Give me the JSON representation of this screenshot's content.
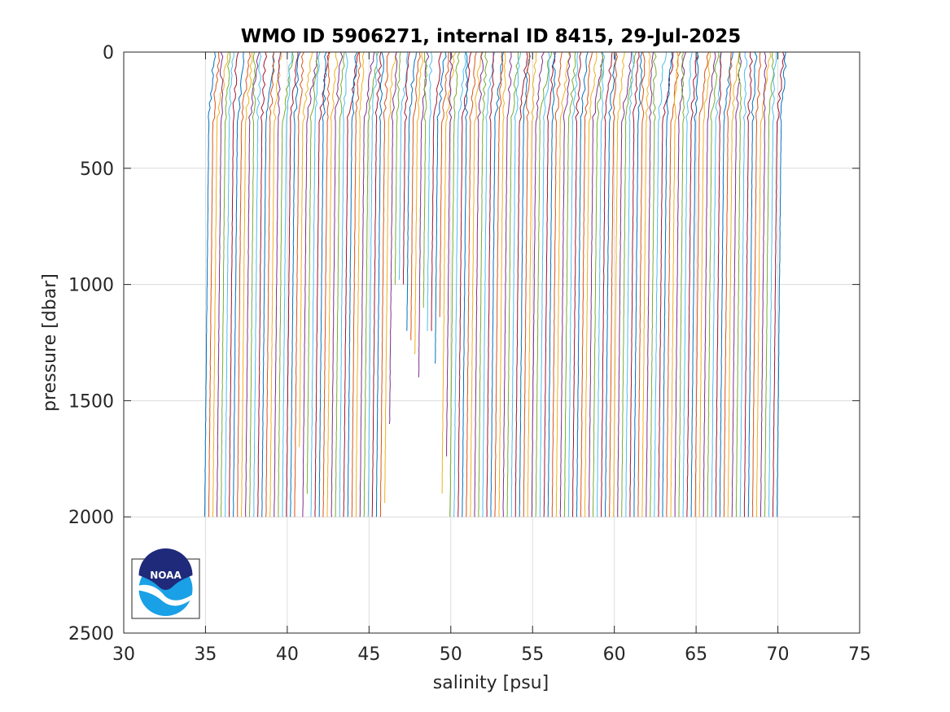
{
  "chart_data": {
    "type": "line",
    "title": "WMO ID 5906271, internal ID 8415, 29-Jul-2025",
    "xlabel": "salinity [psu]",
    "ylabel": "pressure [dbar]",
    "xlim": [
      30,
      75
    ],
    "ylim": [
      0,
      2500
    ],
    "y_reversed": true,
    "grid": true,
    "x_ticks": [
      "30",
      "35",
      "40",
      "45",
      "50",
      "55",
      "60",
      "65",
      "70",
      "75"
    ],
    "y_ticks": [
      "0",
      "500",
      "1000",
      "1500",
      "2000",
      "2500"
    ],
    "series_description": "waterfall of per-cycle salinity profiles, each profile offset by ~0.25 psu from the previous one",
    "colors": [
      "#0072bd",
      "#d95319",
      "#edb120",
      "#7e2f8e",
      "#77ac30",
      "#4dbeee",
      "#a2142f"
    ],
    "profiles": {
      "count": 141,
      "first_offset_psu": 35.0,
      "offset_step_psu": 0.25,
      "max_pressure_dbar": 2000,
      "short_profiles": [
        {
          "index": 23,
          "max_pressure_dbar": 1700
        },
        {
          "index": 25,
          "max_pressure_dbar": 1900
        },
        {
          "index": 44,
          "max_pressure_dbar": 1950
        },
        {
          "index": 45,
          "max_pressure_dbar": 1600
        },
        {
          "index": 46,
          "max_pressure_dbar": 1000
        },
        {
          "index": 47,
          "max_pressure_dbar": 980
        },
        {
          "index": 48,
          "max_pressure_dbar": 1000
        },
        {
          "index": 49,
          "max_pressure_dbar": 1200
        },
        {
          "index": 50,
          "max_pressure_dbar": 1250
        },
        {
          "index": 51,
          "max_pressure_dbar": 1300
        },
        {
          "index": 52,
          "max_pressure_dbar": 1400
        },
        {
          "index": 53,
          "max_pressure_dbar": 1100
        },
        {
          "index": 54,
          "max_pressure_dbar": 1200
        },
        {
          "index": 55,
          "max_pressure_dbar": 1200
        },
        {
          "index": 56,
          "max_pressure_dbar": 1350
        },
        {
          "index": 57,
          "max_pressure_dbar": 1150
        },
        {
          "index": 58,
          "max_pressure_dbar": 1900
        },
        {
          "index": 59,
          "max_pressure_dbar": 1750
        }
      ]
    }
  },
  "logo": {
    "name": "NOAA",
    "text": "NOAA",
    "colors": {
      "navy": "#1f2a7a",
      "sky": "#1aa0e6",
      "white": "#ffffff"
    }
  }
}
